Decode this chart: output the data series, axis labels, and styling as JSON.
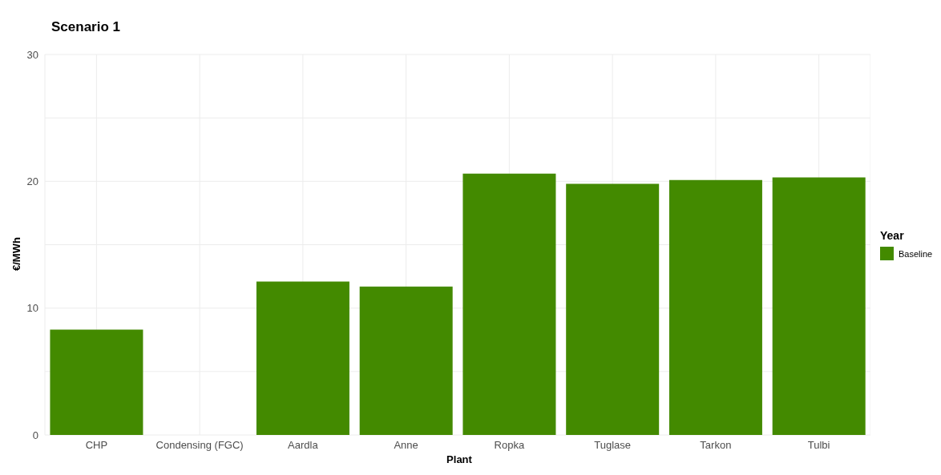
{
  "chart_data": {
    "type": "bar",
    "title": "Scenario 1",
    "xlabel": "Plant",
    "ylabel": "€/MWh",
    "legend_title": "Year",
    "categories": [
      "CHP",
      "Condensing (FGC)",
      "Aardla",
      "Anne",
      "Ropka",
      "Tuglase",
      "Tarkon",
      "Tulbi"
    ],
    "series": [
      {
        "name": "Baseline",
        "color": "#438a00",
        "values": [
          8.3,
          null,
          12.1,
          11.7,
          20.6,
          19.8,
          20.1,
          20.3
        ]
      }
    ],
    "ylim": [
      0,
      30
    ],
    "yticks": [
      0,
      {
        "value": 5,
        "label": null
      },
      10,
      {
        "value": 15,
        "label": null
      },
      20,
      {
        "value": 25,
        "label": null
      },
      30
    ],
    "grid": true,
    "legend": "right"
  }
}
